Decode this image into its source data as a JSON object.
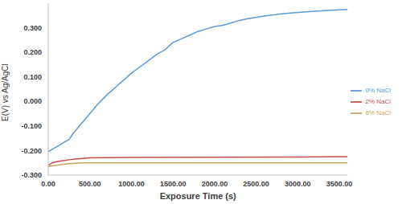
{
  "chart_data": {
    "type": "line",
    "x_label": "Exposure Time (s)",
    "y_label": "E(V) vs Ag/AgCl",
    "xlim": [
      0,
      3600
    ],
    "xticks": [
      {
        "value": 0,
        "label": "0.00"
      },
      {
        "value": 500,
        "label": "500.00"
      },
      {
        "value": 1000,
        "label": "1000.00"
      },
      {
        "value": 1500,
        "label": "1500.00"
      },
      {
        "value": 2000,
        "label": "2000.00"
      },
      {
        "value": 2500,
        "label": "2500.00"
      },
      {
        "value": 3000,
        "label": "3000.00"
      },
      {
        "value": 3500,
        "label": "3500.00"
      }
    ],
    "ylim": [
      -0.3,
      0.4
    ],
    "yticks": [
      {
        "value": -0.3,
        "label": "-0.300"
      },
      {
        "value": -0.2,
        "label": "-0.200"
      },
      {
        "value": -0.1,
        "label": "-0.100"
      },
      {
        "value": 0,
        "label": "0.000"
      },
      {
        "value": 0.1,
        "label": "0.100"
      },
      {
        "value": 0.2,
        "label": "0.200"
      },
      {
        "value": 0.3,
        "label": "0.300"
      }
    ],
    "grid": false,
    "legend": "right",
    "series": [
      {
        "name": "0% NaCl",
        "color": "#5b9bd5",
        "x": [
          0,
          100,
          200,
          250,
          300,
          400,
          500,
          600,
          700,
          800,
          900,
          1000,
          1100,
          1200,
          1300,
          1400,
          1500,
          1600,
          1700,
          1800,
          1900,
          2000,
          2100,
          2200,
          2300,
          2400,
          2600,
          2800,
          3000,
          3200,
          3400,
          3600
        ],
        "values": [
          -0.205,
          -0.185,
          -0.165,
          -0.155,
          -0.13,
          -0.09,
          -0.05,
          -0.01,
          0.025,
          0.055,
          0.085,
          0.115,
          0.14,
          0.165,
          0.19,
          0.21,
          0.24,
          0.255,
          0.27,
          0.285,
          0.295,
          0.305,
          0.31,
          0.32,
          0.33,
          0.337,
          0.348,
          0.357,
          0.362,
          0.367,
          0.371,
          0.375
        ]
      },
      {
        "name": "2% NaCl",
        "color": "#c0504d",
        "x": [
          0,
          50,
          100,
          200,
          300,
          500,
          1000,
          2000,
          3000,
          3600
        ],
        "values": [
          -0.26,
          -0.25,
          -0.245,
          -0.24,
          -0.235,
          -0.23,
          -0.228,
          -0.227,
          -0.226,
          -0.225
        ]
      },
      {
        "name": "6% NaCl",
        "color": "#c9a45c",
        "x": [
          0,
          100,
          200,
          400,
          1000,
          2000,
          3000,
          3600
        ],
        "values": [
          -0.265,
          -0.26,
          -0.255,
          -0.25,
          -0.25,
          -0.25,
          -0.25,
          -0.25
        ]
      }
    ]
  }
}
